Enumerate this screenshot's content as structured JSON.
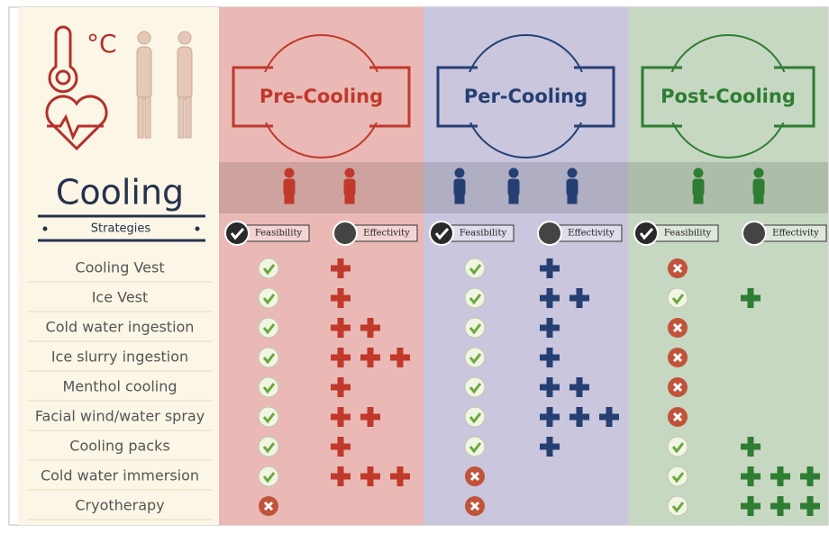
{
  "header": {
    "temperature_unit": "°C",
    "title": "Cooling",
    "subtitle": "Strategies"
  },
  "phases": [
    {
      "title": "Pre-Cooling",
      "color": "#c0392b",
      "feasibility_label": "Feasibility",
      "effectivity_label": "Effectivity"
    },
    {
      "title": "Per-Cooling",
      "color": "#263f73",
      "feasibility_label": "Feasibility",
      "effectivity_label": "Effectivity"
    },
    {
      "title": "Post-Cooling",
      "color": "#2e7d32",
      "feasibility_label": "Feasibility",
      "effectivity_label": "Effectivity"
    }
  ],
  "table": {
    "rows": [
      {
        "strategy": "Cooling Vest",
        "feasibility": [
          true,
          true,
          false
        ],
        "effectivity": [
          1,
          1,
          0
        ]
      },
      {
        "strategy": "Ice Vest",
        "feasibility": [
          true,
          true,
          true
        ],
        "effectivity": [
          1,
          2,
          1
        ]
      },
      {
        "strategy": "Cold water ingestion",
        "feasibility": [
          true,
          true,
          false
        ],
        "effectivity": [
          2,
          1,
          0
        ]
      },
      {
        "strategy": "Ice slurry ingestion",
        "feasibility": [
          true,
          true,
          false
        ],
        "effectivity": [
          3,
          1,
          0
        ]
      },
      {
        "strategy": "Menthol cooling",
        "feasibility": [
          true,
          true,
          false
        ],
        "effectivity": [
          1,
          2,
          0
        ]
      },
      {
        "strategy": "Facial wind/water spray",
        "feasibility": [
          true,
          true,
          false
        ],
        "effectivity": [
          2,
          3,
          0
        ]
      },
      {
        "strategy": "Cooling packs",
        "feasibility": [
          true,
          true,
          true
        ],
        "effectivity": [
          1,
          1,
          1
        ]
      },
      {
        "strategy": "Cold water immersion",
        "feasibility": [
          true,
          false,
          true
        ],
        "effectivity": [
          3,
          0,
          3
        ]
      },
      {
        "strategy": "Cryotherapy",
        "feasibility": [
          false,
          false,
          true
        ],
        "effectivity": [
          0,
          0,
          3
        ]
      }
    ]
  }
}
